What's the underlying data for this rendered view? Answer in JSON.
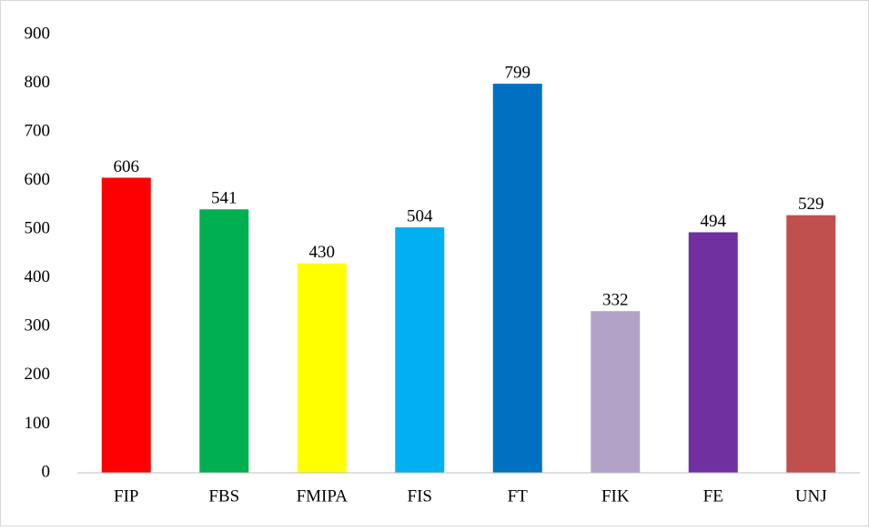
{
  "chart_data": {
    "type": "bar",
    "categories": [
      "FIP",
      "FBS",
      "FMIPA",
      "FIS",
      "FT",
      "FIK",
      "FE",
      "UNJ"
    ],
    "values": [
      606,
      541,
      430,
      504,
      799,
      332,
      494,
      529
    ],
    "colors": [
      "#ff0000",
      "#00b050",
      "#ffff00",
      "#00b0f0",
      "#0070c0",
      "#b3a2c7",
      "#7030a0",
      "#c0504d"
    ],
    "ylim": [
      0,
      900
    ],
    "yticks": [
      0,
      100,
      200,
      300,
      400,
      500,
      600,
      700,
      800,
      900
    ],
    "grid": false
  }
}
